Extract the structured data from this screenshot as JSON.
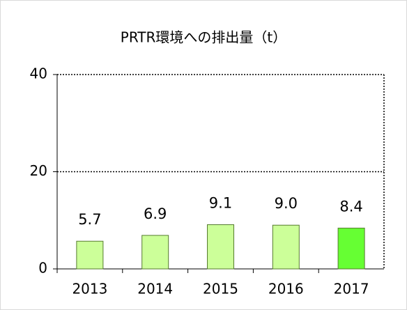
{
  "chart_data": {
    "type": "bar",
    "title": "PRTR環境への排出量（t）",
    "categories": [
      "2013",
      "2014",
      "2015",
      "2016",
      "2017"
    ],
    "values": [
      5.7,
      6.9,
      9.1,
      9.0,
      8.4
    ],
    "value_labels": [
      "5.7",
      "6.9",
      "9.1",
      "9.0",
      "8.4"
    ],
    "colors": [
      "#ccff99",
      "#ccff99",
      "#ccff99",
      "#ccff99",
      "#66ff33"
    ],
    "ylim": [
      0,
      40
    ],
    "yticks": [
      0,
      20,
      40
    ],
    "grid": true
  }
}
